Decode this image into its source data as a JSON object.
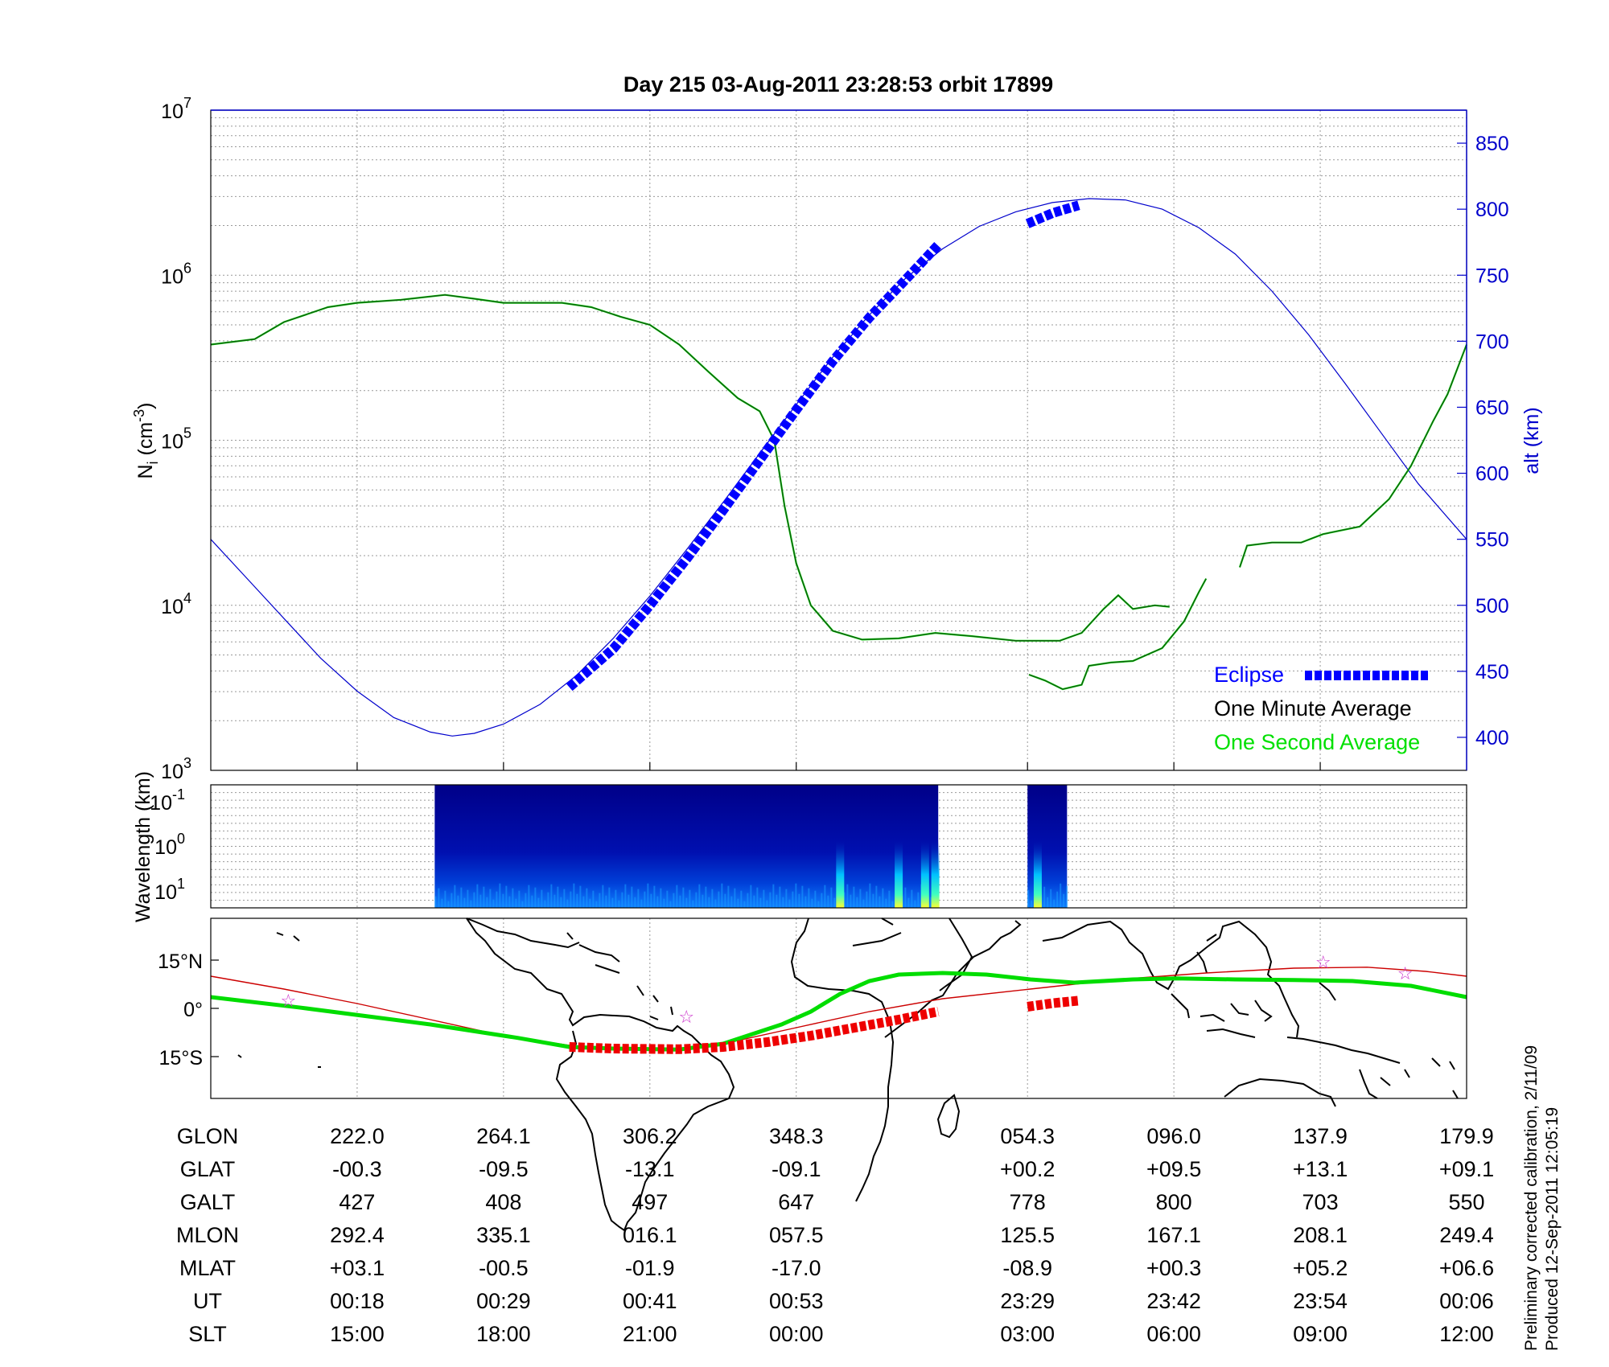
{
  "title": "Day 215  03-Aug-2011 23:28:53   orbit 17899",
  "colors": {
    "one_minute_average": "#000000",
    "one_second_average": "#00e000",
    "altitude": "#0000cc",
    "eclipse": "#0000ff",
    "magnetic_equator": "#cc0000",
    "ground_track": "#00dd00",
    "ground_track_eclipse": "#ee0000",
    "stars": "#cc33cc"
  },
  "chart_data": [
    {
      "type": "line",
      "panel": "ion-density",
      "ylabel": "N_i (cm^-3)",
      "ylabel_main": "N",
      "ylabel_sub": "i",
      "ylabel_unit": " (cm",
      "ylabel_sup": "-3",
      "ylabel_close": ")",
      "yscale": "log",
      "ylim": [
        1000,
        10000000
      ],
      "yticks": [
        {
          "value": 1000,
          "base": "10",
          "exp": "3"
        },
        {
          "value": 10000,
          "base": "10",
          "exp": "4"
        },
        {
          "value": 100000,
          "base": "10",
          "exp": "5"
        },
        {
          "value": 1000000,
          "base": "10",
          "exp": "6"
        },
        {
          "value": 10000000,
          "base": "10",
          "exp": "7"
        }
      ],
      "y2label": "alt (km)",
      "y2lim": [
        375,
        875
      ],
      "y2ticks": [
        "400",
        "450",
        "500",
        "550",
        "600",
        "650",
        "700",
        "750",
        "800",
        "850"
      ],
      "xlim": [
        0,
        8.58
      ],
      "legend_position": "bottom-right",
      "legend": [
        {
          "label": "Eclipse",
          "key": "eclipse"
        },
        {
          "label": "One Minute Average",
          "key": "one_minute_average"
        },
        {
          "label": "One Second Average",
          "key": "one_second_average"
        }
      ],
      "series": [
        {
          "key": "ion_density",
          "axis": "left",
          "segments": [
            [
              [
                0,
                380000
              ],
              [
                0.3,
                410000
              ],
              [
                0.5,
                520000
              ],
              [
                0.8,
                640000
              ],
              [
                1.0,
                680000
              ],
              [
                1.3,
                710000
              ],
              [
                1.6,
                760000
              ],
              [
                1.8,
                720000
              ],
              [
                2.0,
                680000
              ],
              [
                2.4,
                680000
              ],
              [
                2.6,
                640000
              ],
              [
                2.8,
                560000
              ],
              [
                3.0,
                500000
              ],
              [
                3.2,
                380000
              ],
              [
                3.4,
                260000
              ],
              [
                3.6,
                180000
              ],
              [
                3.75,
                150000
              ],
              [
                3.85,
                100000
              ],
              [
                3.92,
                40000
              ],
              [
                4.0,
                18000
              ],
              [
                4.1,
                10000
              ],
              [
                4.25,
                7000
              ],
              [
                4.45,
                6200
              ],
              [
                4.7,
                6300
              ],
              [
                4.95,
                6800
              ],
              [
                5.2,
                6500
              ],
              [
                5.5,
                6100
              ],
              [
                5.8,
                6100
              ],
              [
                5.95,
                6800
              ],
              [
                6.1,
                9500
              ],
              [
                6.2,
                11500
              ],
              [
                6.3,
                9500
              ],
              [
                6.45,
                10000
              ],
              [
                6.55,
                9800
              ]
            ],
            [
              [
                5.59,
                3800
              ],
              [
                5.7,
                3500
              ],
              [
                5.82,
                3100
              ],
              [
                5.95,
                3300
              ],
              [
                6.0,
                4300
              ],
              [
                6.15,
                4500
              ],
              [
                6.3,
                4600
              ],
              [
                6.5,
                5500
              ],
              [
                6.65,
                8000
              ],
              [
                6.75,
                12000
              ],
              [
                6.8,
                14500
              ]
            ],
            [
              [
                7.03,
                17000
              ],
              [
                7.08,
                23000
              ],
              [
                7.25,
                24000
              ],
              [
                7.45,
                24000
              ],
              [
                7.6,
                27000
              ],
              [
                7.85,
                30000
              ],
              [
                8.05,
                44000
              ],
              [
                8.2,
                70000
              ],
              [
                8.35,
                130000
              ],
              [
                8.45,
                190000
              ],
              [
                8.58,
                380000
              ]
            ]
          ]
        },
        {
          "key": "altitude",
          "axis": "right",
          "points": [
            [
              0,
              550
            ],
            [
              0.25,
              520
            ],
            [
              0.5,
              490
            ],
            [
              0.75,
              460
            ],
            [
              1.0,
              435
            ],
            [
              1.25,
              415
            ],
            [
              1.5,
              404
            ],
            [
              1.65,
              401
            ],
            [
              1.8,
              403
            ],
            [
              2.0,
              410
            ],
            [
              2.25,
              425
            ],
            [
              2.5,
              447
            ],
            [
              2.75,
              475
            ],
            [
              3.0,
              507
            ],
            [
              3.25,
              542
            ],
            [
              3.5,
              578
            ],
            [
              3.75,
              615
            ],
            [
              4.0,
              652
            ],
            [
              4.25,
              688
            ],
            [
              4.5,
              720
            ],
            [
              4.75,
              748
            ],
            [
              5.0,
              770
            ],
            [
              5.25,
              787
            ],
            [
              5.5,
              798
            ],
            [
              5.75,
              805
            ],
            [
              6.0,
              808
            ],
            [
              6.25,
              807
            ],
            [
              6.5,
              800
            ],
            [
              6.75,
              786
            ],
            [
              7.0,
              766
            ],
            [
              7.25,
              738
            ],
            [
              7.5,
              705
            ],
            [
              7.75,
              668
            ],
            [
              8.0,
              630
            ],
            [
              8.25,
              592
            ],
            [
              8.58,
              550
            ]
          ]
        },
        {
          "key": "eclipse",
          "axis": "right",
          "segments": [
            [
              [
                2.45,
                438
              ],
              [
                2.75,
                467
              ],
              [
                3.0,
                500
              ],
              [
                3.25,
                535
              ],
              [
                3.5,
                572
              ],
              [
                3.75,
                610
              ],
              [
                4.0,
                648
              ],
              [
                4.25,
                685
              ],
              [
                4.5,
                718
              ],
              [
                4.75,
                747
              ],
              [
                4.97,
                773
              ]
            ],
            [
              [
                5.58,
                789
              ],
              [
                5.75,
                797
              ],
              [
                5.93,
                803
              ]
            ]
          ]
        }
      ]
    },
    {
      "type": "heatmap",
      "panel": "spectrogram",
      "ylabel": "Wavelength (km)",
      "yticks": [
        {
          "base": "10",
          "exp": "-1"
        },
        {
          "base": "10",
          "exp": "0"
        },
        {
          "base": "10",
          "exp": "1"
        }
      ],
      "data_intervals": [
        [
          1.53,
          4.97
        ],
        [
          5.58,
          5.85
        ]
      ],
      "bright_regions": [
        4.3,
        4.7,
        4.88,
        4.95,
        5.65
      ]
    },
    {
      "type": "line",
      "panel": "ground-track",
      "xlim": [
        222.0,
        179.9
      ],
      "ylim": [
        -28,
        28
      ],
      "ylabels": [
        "15°N",
        "0°",
        "15°S"
      ],
      "yticks_values": [
        15,
        0,
        -15
      ],
      "ground_track": [
        [
          0,
          3.5
        ],
        [
          0.6,
          0.3
        ],
        [
          1.5,
          -5
        ],
        [
          2.1,
          -9.2
        ],
        [
          2.45,
          -12
        ],
        [
          2.75,
          -12.5
        ],
        [
          3.2,
          -12.8
        ],
        [
          3.5,
          -11
        ],
        [
          3.9,
          -5
        ],
        [
          4.1,
          -1
        ],
        [
          4.3,
          4.5
        ],
        [
          4.5,
          8.5
        ],
        [
          4.7,
          10.5
        ],
        [
          5.0,
          11
        ],
        [
          5.3,
          10.5
        ],
        [
          5.6,
          9
        ],
        [
          5.9,
          8
        ],
        [
          6.3,
          9
        ],
        [
          6.6,
          9.3
        ],
        [
          7.0,
          9
        ],
        [
          7.4,
          8.8
        ],
        [
          7.8,
          8.5
        ],
        [
          8.2,
          7
        ],
        [
          8.58,
          3.5
        ]
      ],
      "ground_track_eclipse": [
        [
          [
            2.45,
            -12
          ],
          [
            2.75,
            -12.5
          ],
          [
            3.2,
            -12.7
          ],
          [
            3.5,
            -12
          ],
          [
            3.8,
            -10.5
          ],
          [
            4.1,
            -8.5
          ],
          [
            4.4,
            -6
          ],
          [
            4.7,
            -3.5
          ],
          [
            4.97,
            -1
          ]
        ],
        [
          [
            5.58,
            0.5
          ],
          [
            5.75,
            1.6
          ],
          [
            5.93,
            2.4
          ]
        ]
      ],
      "magnetic_equator": [
        [
          0,
          10
        ],
        [
          0.5,
          6
        ],
        [
          1.0,
          1.5
        ],
        [
          1.5,
          -3.5
        ],
        [
          2.0,
          -8.5
        ],
        [
          2.45,
          -11.5
        ],
        [
          2.75,
          -12.5
        ],
        [
          3.2,
          -12.5
        ],
        [
          3.6,
          -10
        ],
        [
          4.0,
          -6
        ],
        [
          4.5,
          -1
        ],
        [
          5.0,
          3
        ],
        [
          5.6,
          6
        ],
        [
          6.2,
          9
        ],
        [
          6.8,
          11
        ],
        [
          7.4,
          12.5
        ],
        [
          7.9,
          12.8
        ],
        [
          8.3,
          11.5
        ],
        [
          8.58,
          10
        ]
      ],
      "stars": [
        [
          0.53,
          2.5
        ],
        [
          3.25,
          -2.5
        ],
        [
          7.6,
          14.5
        ],
        [
          8.16,
          11
        ]
      ]
    }
  ],
  "table": {
    "row_labels": [
      "GLON",
      "GLAT",
      "GALT",
      "MLON",
      "MLAT",
      "UT",
      "SLT"
    ],
    "columns": [
      {
        "x": 1.0,
        "values": [
          "222.0",
          "-00.3",
          "427",
          "292.4",
          "+03.1",
          "00:18",
          "15:00"
        ]
      },
      {
        "x": 2.0,
        "values": [
          "264.1",
          "-09.5",
          "408",
          "335.1",
          "-00.5",
          "00:29",
          "18:00"
        ]
      },
      {
        "x": 3.0,
        "values": [
          "306.2",
          "-13.1",
          "497",
          "016.1",
          "-01.9",
          "00:41",
          "21:00"
        ]
      },
      {
        "x": 4.0,
        "values": [
          "348.3",
          "-09.1",
          "647",
          "057.5",
          "-17.0",
          "00:53",
          "00:00"
        ]
      },
      {
        "x": 5.58,
        "values": [
          "054.3",
          "+00.2",
          "778",
          "125.5",
          "-08.9",
          "23:29",
          "03:00"
        ]
      },
      {
        "x": 6.58,
        "values": [
          "096.0",
          "+09.5",
          "800",
          "167.1",
          "+00.3",
          "23:42",
          "06:00"
        ]
      },
      {
        "x": 7.58,
        "values": [
          "137.9",
          "+13.1",
          "703",
          "208.1",
          "+05.2",
          "23:54",
          "09:00"
        ]
      },
      {
        "x": 8.58,
        "values": [
          "179.9",
          "+09.1",
          "550",
          "249.4",
          "+06.6",
          "00:06",
          "12:00"
        ]
      }
    ]
  },
  "footnote": {
    "line1": "Preliminary corrected calibration, 2/11/09",
    "line2": "Produced 12-Sep-2011 12:05:19"
  }
}
